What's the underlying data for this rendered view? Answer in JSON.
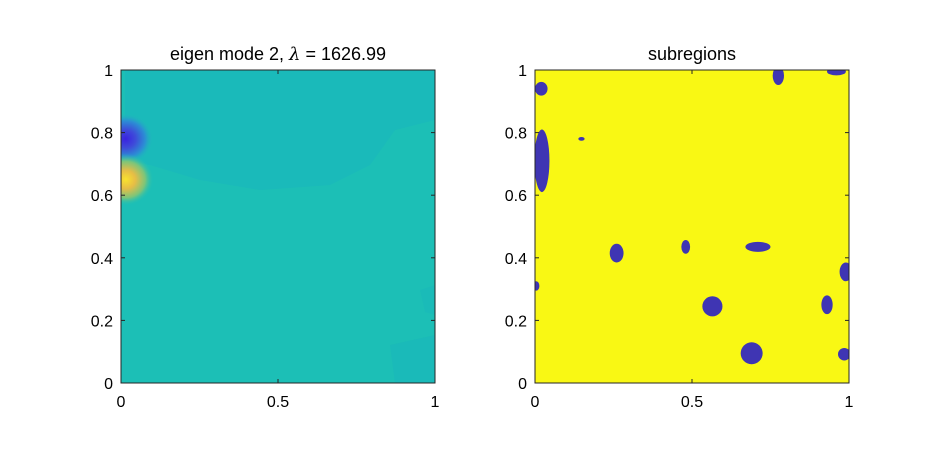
{
  "chart_data": [
    {
      "type": "heatmap",
      "title": "eigen mode 2, λ = 1626.99",
      "title_prefix": "eigen mode 2, ",
      "title_symbol": "λ",
      "title_suffix": " = 1626.99",
      "xlim": [
        0,
        1
      ],
      "ylim": [
        0,
        1
      ],
      "x_ticks": [
        "0",
        "0.5",
        "1"
      ],
      "y_ticks": [
        "0",
        "0.2",
        "0.4",
        "0.6",
        "0.8",
        "1"
      ],
      "colormap": "parula",
      "background_color": "#1cbfb6",
      "features": [
        {
          "kind": "negative-peak",
          "x": 0.015,
          "y": 0.78,
          "color": "#3e2ed8"
        },
        {
          "kind": "positive-peak",
          "x": 0.015,
          "y": 0.65,
          "color": "#f8d93a"
        }
      ]
    },
    {
      "type": "heatmap",
      "title": "subregions",
      "xlim": [
        0,
        1
      ],
      "ylim": [
        0,
        1
      ],
      "x_ticks": [
        "0",
        "0.5",
        "1"
      ],
      "y_ticks": [
        "0",
        "0.2",
        "0.4",
        "0.6",
        "0.8",
        "1"
      ],
      "background_color": "#f9f814",
      "region_color": "#3f35b3",
      "regions": [
        {
          "x": 0.02,
          "y": 0.94,
          "rx": 0.02,
          "ry": 0.022
        },
        {
          "x": 0.022,
          "y": 0.71,
          "rx": 0.024,
          "ry": 0.1
        },
        {
          "x": 0.148,
          "y": 0.78,
          "rx": 0.01,
          "ry": 0.006
        },
        {
          "x": 0.775,
          "y": 0.982,
          "rx": 0.018,
          "ry": 0.03
        },
        {
          "x": 0.96,
          "y": 0.995,
          "rx": 0.03,
          "ry": 0.012
        },
        {
          "x": 0.26,
          "y": 0.415,
          "rx": 0.022,
          "ry": 0.03
        },
        {
          "x": 0.48,
          "y": 0.435,
          "rx": 0.014,
          "ry": 0.022
        },
        {
          "x": 0.71,
          "y": 0.435,
          "rx": 0.04,
          "ry": 0.016
        },
        {
          "x": 0.99,
          "y": 0.355,
          "rx": 0.02,
          "ry": 0.03
        },
        {
          "x": 0.004,
          "y": 0.31,
          "rx": 0.01,
          "ry": 0.015
        },
        {
          "x": 0.565,
          "y": 0.245,
          "rx": 0.032,
          "ry": 0.032
        },
        {
          "x": 0.93,
          "y": 0.25,
          "rx": 0.018,
          "ry": 0.03
        },
        {
          "x": 0.69,
          "y": 0.095,
          "rx": 0.035,
          "ry": 0.035
        },
        {
          "x": 0.985,
          "y": 0.092,
          "rx": 0.02,
          "ry": 0.02
        }
      ]
    }
  ]
}
